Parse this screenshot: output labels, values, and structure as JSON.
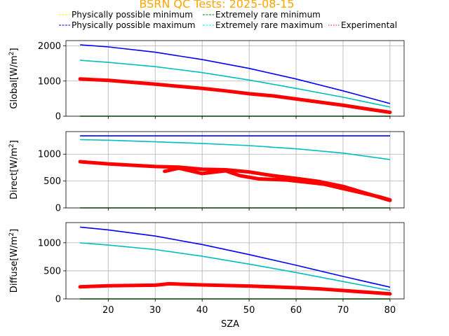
{
  "chart_data": {
    "title": "BSRN QC Tests: 2025-08-15",
    "title_color": "#ffa500",
    "type": "line",
    "legend": {
      "placement": "top",
      "entries": [
        {
          "label": "Physically possible minimum",
          "color": "#ffff00",
          "style": "dashed"
        },
        {
          "label": "Extremely rare minimum",
          "color": "#008000",
          "style": "dashed"
        },
        {
          "label": "Physically possible maximum",
          "color": "#0000ff",
          "style": "dashed"
        },
        {
          "label": "Extremely rare maximum",
          "color": "#00ffff",
          "style": "dashed"
        },
        {
          "label": "Experimental",
          "color": "#ff0000",
          "style": "dotted"
        }
      ]
    },
    "xlabel": "SZA",
    "xlim": [
      11,
      83
    ],
    "xticks": [
      20,
      30,
      40,
      50,
      60,
      70,
      80
    ],
    "grid": true,
    "panels": [
      {
        "ylabel": "Global[W/m²]",
        "ylabel_main": "Global[W/m",
        "ylabel_sup": "2",
        "ylabel_end": "]",
        "ylim": [
          0,
          2150
        ],
        "yticks": [
          0,
          1000,
          2000
        ],
        "series": [
          {
            "name": "Physically possible maximum",
            "color": "#0000ff",
            "x": [
              14,
              20,
              30,
              40,
              50,
              60,
              70,
              80
            ],
            "y": [
              2030,
              1970,
              1820,
              1610,
              1360,
              1060,
              720,
              360
            ]
          },
          {
            "name": "Extremely rare maximum",
            "color": "#00bfbf",
            "x": [
              14,
              20,
              30,
              40,
              50,
              60,
              70,
              80
            ],
            "y": [
              1590,
              1530,
              1410,
              1240,
              1030,
              790,
              540,
              260
            ]
          },
          {
            "name": "Extremely rare minimum",
            "color": "#008000",
            "x": [
              14,
              80
            ],
            "y": [
              0,
              0
            ]
          },
          {
            "name": "Experimental",
            "color": "#ff0000",
            "marker": true,
            "x": [
              14,
              20,
              30,
              40,
              45,
              50,
              55,
              60,
              65,
              70,
              75,
              80
            ],
            "y": [
              1060,
              1020,
              910,
              790,
              720,
              640,
              580,
              490,
              400,
              310,
              210,
              110
            ]
          }
        ]
      },
      {
        "ylabel": "Direct[W/m²]",
        "ylabel_main": "Direct[W/m",
        "ylabel_sup": "2",
        "ylabel_end": "]",
        "ylim": [
          0,
          1420
        ],
        "yticks": [
          0,
          500,
          1000
        ],
        "series": [
          {
            "name": "Physically possible maximum",
            "color": "#0000ff",
            "x": [
              14,
              80
            ],
            "y": [
              1340,
              1340
            ]
          },
          {
            "name": "Extremely rare maximum",
            "color": "#00bfbf",
            "x": [
              14,
              20,
              30,
              40,
              50,
              60,
              70,
              80
            ],
            "y": [
              1270,
              1260,
              1230,
              1200,
              1160,
              1100,
              1020,
              900
            ]
          },
          {
            "name": "Extremely rare minimum",
            "color": "#008000",
            "x": [
              14,
              80
            ],
            "y": [
              0,
              0
            ]
          },
          {
            "name": "Experimental",
            "color": "#ff0000",
            "marker": true,
            "x": [
              14,
              20,
              30,
              35,
              40,
              45,
              50,
              55,
              60,
              65,
              70,
              75,
              80
            ],
            "y": [
              860,
              820,
              770,
              760,
              720,
              710,
              670,
              600,
              550,
              490,
              400,
              270,
              140
            ]
          },
          {
            "name": "Experimental",
            "color": "#ff0000",
            "marker": true,
            "x": [
              32,
              35,
              40,
              45,
              48,
              52,
              58,
              62,
              66,
              70,
              74,
              78,
              80
            ],
            "y": [
              680,
              740,
              640,
              690,
              600,
              540,
              520,
              480,
              440,
              360,
              280,
              200,
              150
            ]
          }
        ]
      },
      {
        "ylabel": "Diffuse[W/m²]",
        "ylabel_main": "Diffuse[W/m",
        "ylabel_sup": "2",
        "ylabel_end": "]",
        "ylim": [
          0,
          1360
        ],
        "yticks": [
          0,
          500,
          1000
        ],
        "series": [
          {
            "name": "Physically possible maximum",
            "color": "#0000ff",
            "x": [
              14,
              20,
              30,
              40,
              50,
              60,
              70,
              80
            ],
            "y": [
              1280,
              1230,
              1120,
              970,
              790,
              600,
              400,
              210
            ]
          },
          {
            "name": "Extremely rare maximum",
            "color": "#00bfbf",
            "x": [
              14,
              20,
              30,
              40,
              50,
              60,
              70,
              80
            ],
            "y": [
              1000,
              960,
              880,
              760,
              620,
              470,
              310,
              150
            ]
          },
          {
            "name": "Extremely rare minimum",
            "color": "#008000",
            "x": [
              14,
              80
            ],
            "y": [
              0,
              0
            ]
          },
          {
            "name": "Experimental",
            "color": "#ff0000",
            "marker": true,
            "x": [
              14,
              20,
              30,
              33,
              40,
              50,
              60,
              65,
              70,
              75,
              80
            ],
            "y": [
              215,
              235,
              245,
              270,
              250,
              230,
              200,
              180,
              150,
              120,
              90
            ]
          }
        ]
      }
    ]
  }
}
